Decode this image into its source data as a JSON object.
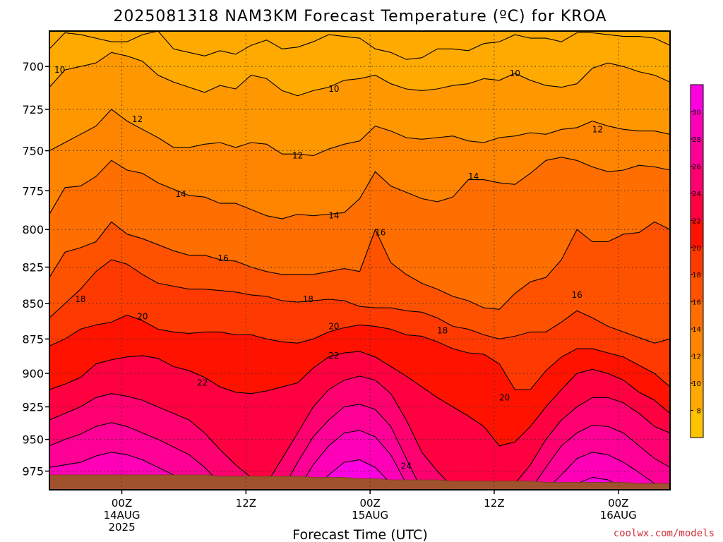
{
  "chart_data": {
    "type": "heatmap",
    "title": "2025081318 NAM3KM Forecast Temperature (ºC) for KROA",
    "xlabel": "Forecast Time (UTC)",
    "ylabel": "",
    "y_scale": "log-pressure (hPa), reversed",
    "ylim": [
      680,
      990
    ],
    "xlim": [
      -7,
      53
    ],
    "x_unit": "hours after 2025-08-14 00Z",
    "y_ticks": [
      700,
      725,
      750,
      775,
      800,
      825,
      850,
      875,
      900,
      925,
      950,
      975
    ],
    "x_ticks": [
      {
        "x": 0,
        "lines": [
          "00Z",
          "14AUG",
          "2025"
        ]
      },
      {
        "x": 12,
        "lines": [
          "12Z"
        ]
      },
      {
        "x": 24,
        "lines": [
          "00Z",
          "15AUG"
        ]
      },
      {
        "x": 36,
        "lines": [
          "12Z"
        ]
      },
      {
        "x": 48,
        "lines": [
          "00Z",
          "16AUG"
        ]
      }
    ],
    "grid": true,
    "colorbar": {
      "placement": "right",
      "levels": [
        6,
        8,
        10,
        12,
        14,
        16,
        18,
        20,
        22,
        24,
        26,
        28,
        30,
        32
      ],
      "labels": [
        8,
        10,
        12,
        14,
        16,
        18,
        20,
        22,
        24,
        26,
        28,
        30
      ],
      "colors": [
        "#ffc400",
        "#ffaa00",
        "#ff9800",
        "#ff8400",
        "#ff6e00",
        "#ff5200",
        "#ff3a00",
        "#ff1200",
        "#ff0040",
        "#ff0070",
        "#ff0096",
        "#ff00b8",
        "#ff00e0"
      ]
    },
    "times": [
      -7,
      -5.5,
      -4,
      -2.5,
      -1,
      0.5,
      2,
      3.5,
      5,
      6.5,
      8,
      9.5,
      11,
      12.5,
      14,
      15.5,
      17,
      18.5,
      20,
      21.5,
      23,
      24.5,
      26,
      27.5,
      29,
      30.5,
      32,
      33.5,
      35,
      36.5,
      38,
      39.5,
      41,
      42.5,
      44,
      45.5,
      47,
      48.5,
      50,
      51.5,
      53
    ],
    "isotherms": [
      {
        "t": 8,
        "p": [
          690,
          681,
          682,
          684,
          686,
          686,
          682,
          680,
          690,
          692,
          694,
          691,
          693,
          688,
          685,
          690,
          689,
          686,
          682,
          683,
          684,
          690,
          692,
          696,
          695,
          690,
          690,
          691,
          687,
          686,
          682,
          684,
          684,
          686,
          681,
          681,
          682,
          683,
          683,
          684,
          688
        ]
      },
      {
        "t": 10,
        "p": [
          712,
          702,
          700,
          698,
          692,
          694,
          697,
          705,
          709,
          712,
          715,
          711,
          713,
          705,
          707,
          714,
          717,
          714,
          712,
          708,
          707,
          705,
          710,
          713,
          714,
          713,
          711,
          710,
          707,
          708,
          704,
          708,
          711,
          712,
          710,
          701,
          698,
          700,
          703,
          705,
          709
        ]
      },
      {
        "t": 12,
        "p": [
          750,
          745,
          740,
          735,
          725,
          732,
          737,
          742,
          748,
          748,
          746,
          745,
          748,
          745,
          746,
          752,
          752,
          753,
          749,
          746,
          744,
          735,
          738,
          742,
          743,
          742,
          741,
          744,
          745,
          742,
          741,
          739,
          740,
          737,
          736,
          732,
          735,
          737,
          738,
          738,
          740
        ]
      },
      {
        "t": 14,
        "p": [
          790,
          773,
          772,
          766,
          756,
          762,
          764,
          770,
          774,
          778,
          779,
          783,
          783,
          787,
          791,
          793,
          790,
          791,
          790,
          789,
          780,
          763,
          772,
          776,
          780,
          782,
          779,
          768,
          768,
          770,
          771,
          764,
          756,
          754,
          756,
          760,
          763,
          762,
          759,
          760,
          762
        ]
      },
      {
        "t": 16,
        "p": [
          832,
          815,
          812,
          808,
          795,
          803,
          806,
          810,
          814,
          817,
          817,
          820,
          821,
          825,
          828,
          830,
          830,
          830,
          828,
          826,
          828,
          800,
          822,
          830,
          836,
          840,
          845,
          848,
          853,
          854,
          843,
          835,
          832,
          820,
          800,
          808,
          808,
          803,
          802,
          795,
          800
        ]
      },
      {
        "t": 18,
        "p": [
          860,
          850,
          840,
          828,
          820,
          823,
          830,
          836,
          838,
          840,
          840,
          841,
          842,
          844,
          845,
          848,
          849,
          848,
          847,
          848,
          852,
          853,
          853,
          855,
          856,
          860,
          866,
          868,
          872,
          875,
          873,
          870,
          870,
          863,
          855,
          860,
          866,
          870,
          874,
          878,
          875
        ]
      },
      {
        "t": 20,
        "p": [
          880,
          875,
          868,
          865,
          863,
          858,
          862,
          868,
          870,
          871,
          870,
          870,
          872,
          872,
          875,
          877,
          878,
          875,
          870,
          867,
          865,
          866,
          868,
          872,
          873,
          877,
          882,
          885,
          886,
          893,
          912,
          912,
          898,
          888,
          882,
          882,
          885,
          888,
          894,
          900,
          910
        ]
      },
      {
        "t": 22,
        "p": [
          912,
          908,
          903,
          893,
          890,
          888,
          887,
          889,
          895,
          898,
          903,
          910,
          914,
          915,
          913,
          910,
          907,
          896,
          888,
          885,
          884,
          888,
          895,
          902,
          910,
          918,
          925,
          932,
          940,
          955,
          952,
          940,
          925,
          912,
          900,
          897,
          900,
          905,
          914,
          920,
          930
        ]
      },
      {
        "t": 24,
        "p": [
          935,
          930,
          925,
          918,
          915,
          917,
          920,
          925,
          930,
          935,
          945,
          958,
          970,
          980,
          985,
          965,
          945,
          925,
          912,
          905,
          902,
          905,
          915,
          935,
          960,
          975,
          988,
          988,
          988,
          988,
          985,
          970,
          950,
          935,
          925,
          918,
          918,
          922,
          930,
          940,
          945
        ]
      },
      {
        "t": 26,
        "p": [
          955,
          950,
          946,
          940,
          937,
          940,
          945,
          950,
          956,
          962,
          972,
          985,
          990,
          990,
          990,
          990,
          968,
          948,
          935,
          925,
          923,
          927,
          940,
          965,
          990,
          990,
          990,
          990,
          990,
          990,
          990,
          990,
          972,
          955,
          945,
          939,
          940,
          945,
          955,
          965,
          972
        ]
      },
      {
        "t": 28,
        "p": [
          972,
          970,
          968,
          963,
          960,
          962,
          966,
          972,
          978,
          985,
          990,
          990,
          990,
          990,
          990,
          990,
          990,
          970,
          955,
          945,
          943,
          948,
          962,
          985,
          990,
          990,
          990,
          990,
          990,
          990,
          990,
          990,
          990,
          978,
          965,
          960,
          962,
          968,
          976,
          985,
          990
        ]
      },
      {
        "t": 30,
        "p": [
          990,
          990,
          988,
          982,
          978,
          980,
          984,
          990,
          990,
          990,
          990,
          990,
          990,
          990,
          990,
          990,
          990,
          990,
          978,
          968,
          966,
          972,
          985,
          990,
          990,
          990,
          990,
          990,
          990,
          990,
          990,
          990,
          990,
          990,
          985,
          980,
          982,
          988,
          990,
          990,
          990
        ]
      }
    ],
    "contour_labels": [
      {
        "text": "10",
        "x": -6.0,
        "p": 702
      },
      {
        "text": "10",
        "x": 20.5,
        "p": 713
      },
      {
        "text": "10",
        "x": 38.0,
        "p": 704
      },
      {
        "text": "12",
        "x": 1.5,
        "p": 731
      },
      {
        "text": "12",
        "x": 17.0,
        "p": 753
      },
      {
        "text": "12",
        "x": 46.0,
        "p": 737
      },
      {
        "text": "14",
        "x": 5.7,
        "p": 777
      },
      {
        "text": "14",
        "x": 20.5,
        "p": 791
      },
      {
        "text": "14",
        "x": 34.0,
        "p": 766
      },
      {
        "text": "16",
        "x": 9.8,
        "p": 819
      },
      {
        "text": "16",
        "x": 25.0,
        "p": 802
      },
      {
        "text": "16",
        "x": 44.0,
        "p": 844
      },
      {
        "text": "18",
        "x": -4.0,
        "p": 847
      },
      {
        "text": "18",
        "x": 18.0,
        "p": 847
      },
      {
        "text": "18",
        "x": 31.0,
        "p": 869
      },
      {
        "text": "20",
        "x": 2.0,
        "p": 859
      },
      {
        "text": "20",
        "x": 20.5,
        "p": 866
      },
      {
        "text": "20",
        "x": 37.0,
        "p": 918
      },
      {
        "text": "22",
        "x": 7.8,
        "p": 907
      },
      {
        "text": "22",
        "x": 20.5,
        "p": 887
      },
      {
        "text": "24",
        "x": 27.5,
        "p": 971
      }
    ],
    "ground": {
      "label": "",
      "color": "#a0522d",
      "surface_p": [
        978,
        978,
        978,
        978,
        978,
        978,
        978,
        978,
        978,
        978,
        978,
        979,
        979,
        979,
        979,
        979,
        979,
        980,
        980,
        980,
        981,
        981,
        982,
        982,
        982,
        982,
        983,
        983,
        983,
        983,
        983,
        983,
        984,
        984,
        984,
        984,
        984,
        984,
        985,
        985,
        985
      ]
    }
  },
  "credit": "coolwx.com/models"
}
